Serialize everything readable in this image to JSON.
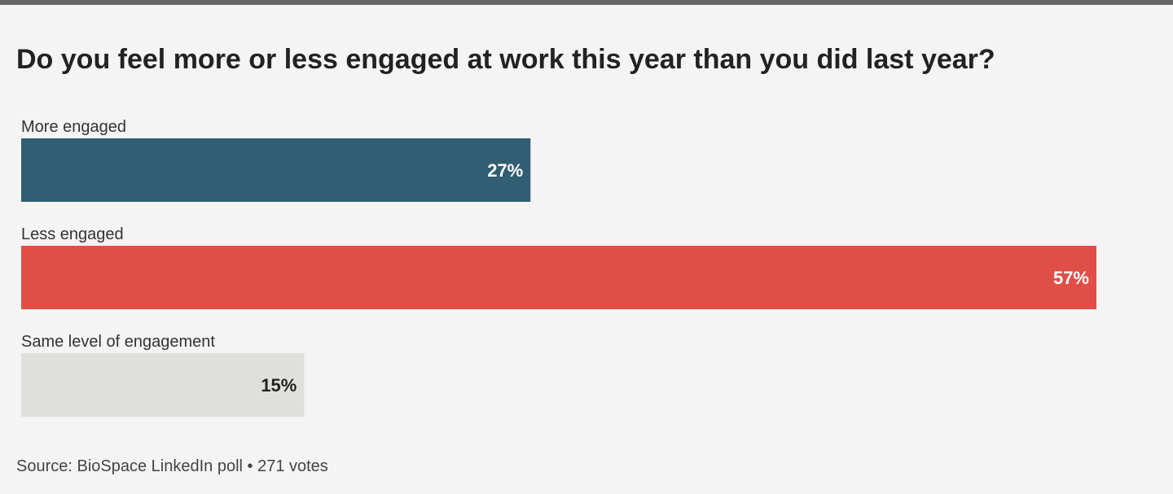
{
  "chart_data": {
    "type": "bar",
    "orientation": "horizontal",
    "title": "Do you feel more or less engaged at work this year than you did last year?",
    "categories": [
      "More engaged",
      "Less engaged",
      "Same level of engagement"
    ],
    "values": [
      27,
      57,
      15
    ],
    "value_labels": [
      "27%",
      "57%",
      "15%"
    ],
    "colors": [
      "#315e72",
      "#e04f47",
      "#dfdfdb"
    ],
    "label_colors": [
      "#ffffff",
      "#ffffff",
      "#222222"
    ],
    "xlim": [
      0,
      60
    ],
    "xlabel": "",
    "ylabel": "",
    "grid": false,
    "legend": "none"
  },
  "source": "Source: BioSpace LinkedIn poll • 271 votes"
}
